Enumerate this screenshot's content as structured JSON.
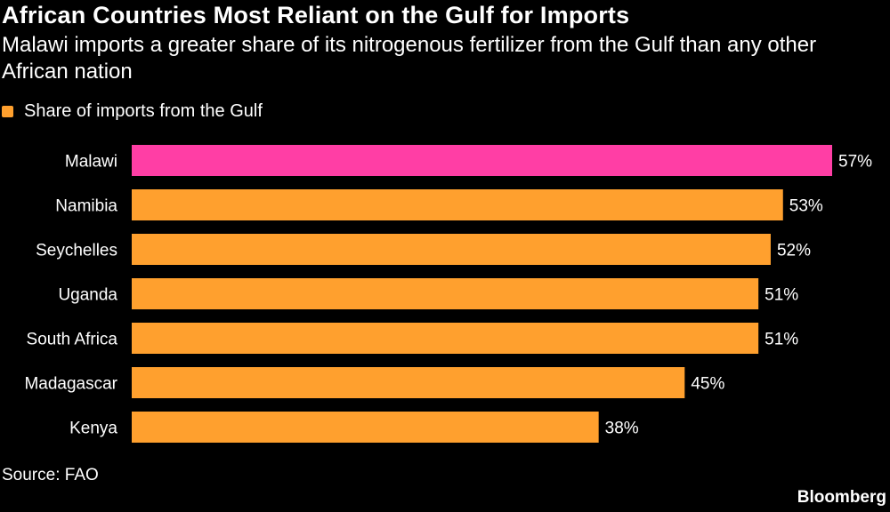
{
  "title": "African Countries Most Reliant on the Gulf for Imports",
  "subtitle": "Malawi imports a greater share of its nitrogenous fertilizer from the Gulf than any other African nation",
  "legend": {
    "label": "Share of imports from the Gulf",
    "color": "#FFA02E"
  },
  "source": "Source: FAO",
  "brand": "Bloomberg",
  "colors": {
    "background": "#000000",
    "bar": "#FFA02E",
    "highlight": "#FF3EA5",
    "text": "#FFFFFF"
  },
  "chart_data": {
    "type": "bar",
    "orientation": "horizontal",
    "categories": [
      "Malawi",
      "Namibia",
      "Seychelles",
      "Uganda",
      "South Africa",
      "Madagascar",
      "Kenya"
    ],
    "values": [
      57,
      53,
      52,
      51,
      51,
      45,
      38
    ],
    "value_labels": [
      "57%",
      "53%",
      "52%",
      "51%",
      "51%",
      "45%",
      "38%"
    ],
    "highlight_category": "Malawi",
    "unit": "%",
    "xlim": [
      0,
      57
    ],
    "grid": false
  }
}
